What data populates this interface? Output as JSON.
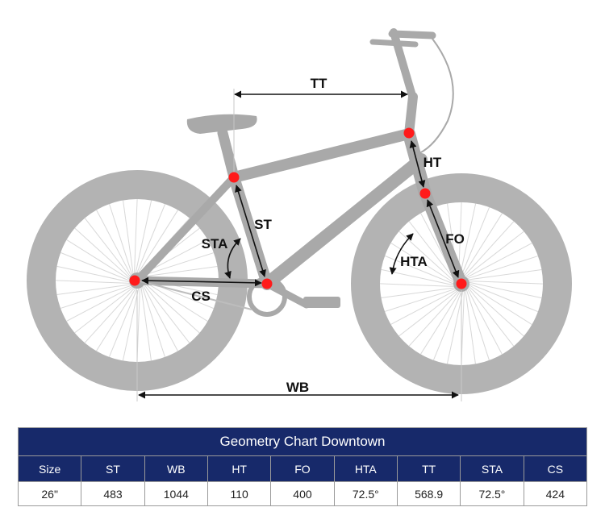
{
  "diagram": {
    "labels": {
      "tt": "TT",
      "ht": "HT",
      "st": "ST",
      "sta": "STA",
      "fo": "FO",
      "hta": "HTA",
      "cs": "CS",
      "wb": "WB"
    },
    "colors": {
      "bike": "#a9a9a9",
      "tire": "#b3b3b3",
      "spoke": "#d8d8d8",
      "point": "#ff1a1a",
      "arrow": "#111111"
    }
  },
  "table": {
    "title": "Geometry Chart Downtown",
    "headers": [
      "Size",
      "ST",
      "WB",
      "HT",
      "FO",
      "HTA",
      "TT",
      "STA",
      "CS"
    ],
    "values": [
      "26\"",
      "483",
      "1044",
      "110",
      "400",
      "72.5°",
      "568.9",
      "72.5°",
      "424"
    ],
    "header_color": "#17296a"
  }
}
